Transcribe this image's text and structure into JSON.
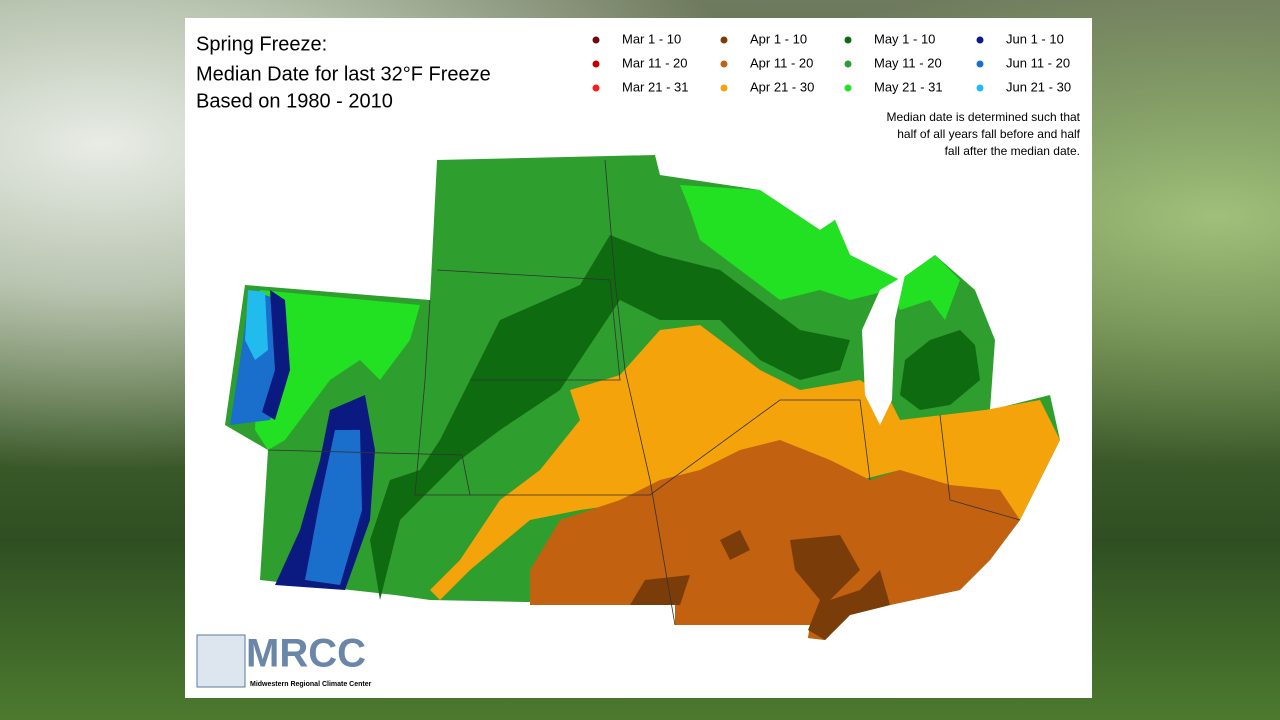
{
  "header": {
    "title_lines": [
      "Spring Freeze:",
      "Median Date for last 32°F Freeze",
      "Based on 1980 - 2010"
    ]
  },
  "legend": [
    {
      "label": "Mar 1 - 10",
      "color": "#6b0a0a"
    },
    {
      "label": "Mar 11 - 20",
      "color": "#c00000"
    },
    {
      "label": "Mar 21 - 31",
      "color": "#ff1a1a"
    },
    {
      "label": "Apr 1 - 10",
      "color": "#7a3d0a"
    },
    {
      "label": "Apr 11 - 20",
      "color": "#c2610f"
    },
    {
      "label": "Apr 21 - 30",
      "color": "#f5a30a"
    },
    {
      "label": "May 1 - 10",
      "color": "#0f6b0f"
    },
    {
      "label": "May 11 - 20",
      "color": "#2e9e2e"
    },
    {
      "label": "May 21 - 31",
      "color": "#22e022"
    },
    {
      "label": "Jun 1 - 10",
      "color": "#0a1a80"
    },
    {
      "label": "Jun 11 - 20",
      "color": "#1a6fcc"
    },
    {
      "label": "Jun 21 - 30",
      "color": "#22bbee"
    }
  ],
  "note_lines": [
    "Median date is determined such that",
    "half of all years fall before and half",
    "fall after the median date."
  ],
  "logo": {
    "name": "MRCC",
    "subtitle": "Midwestern Regional Climate Center"
  }
}
